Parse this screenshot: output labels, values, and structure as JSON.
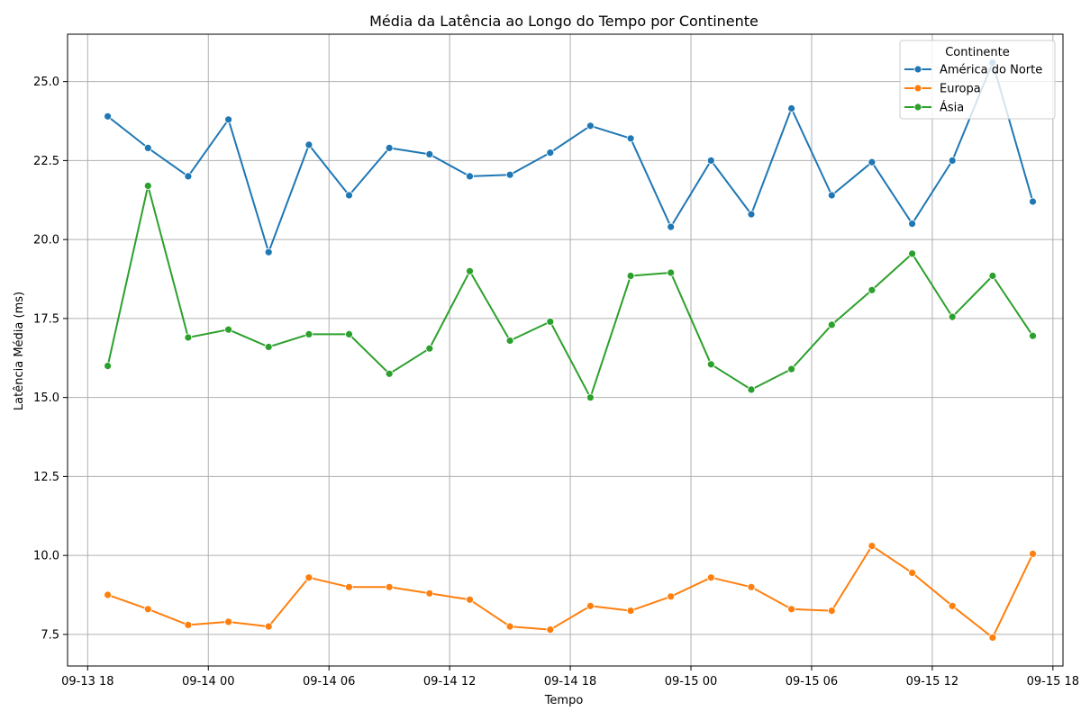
{
  "chart_data": {
    "type": "line",
    "title": "Média da Latência ao Longo do Tempo por Continente",
    "xlabel": "Tempo",
    "ylabel": "Latência Média (ms)",
    "x": [
      "09-13 19:00",
      "09-13 21:00",
      "09-13 23:00",
      "09-14 01:00",
      "09-14 03:00",
      "09-14 05:00",
      "09-14 07:00",
      "09-14 09:00",
      "09-14 11:00",
      "09-14 13:00",
      "09-14 15:00",
      "09-14 17:00",
      "09-14 19:00",
      "09-14 21:00",
      "09-14 23:00",
      "09-15 01:00",
      "09-15 03:00",
      "09-15 05:00",
      "09-15 07:00",
      "09-15 09:00",
      "09-15 11:00",
      "09-15 13:00",
      "09-15 15:00",
      "09-15 17:00"
    ],
    "x_ticks": [
      "09-13 18",
      "09-14 00",
      "09-14 06",
      "09-14 12",
      "09-14 18",
      "09-15 00",
      "09-15 06",
      "09-15 12",
      "09-15 18"
    ],
    "x_range": [
      "09-13 17:00",
      "09-15 18:30"
    ],
    "y_ticks": [
      "7.5",
      "10.0",
      "12.5",
      "15.0",
      "17.5",
      "20.0",
      "22.5",
      "25.0"
    ],
    "ylim": [
      6.5,
      26.5
    ],
    "grid": true,
    "legend": {
      "title": "Continente",
      "placement": "top-right"
    },
    "series": [
      {
        "name": "América do Norte",
        "color": "#1f77b4",
        "values": [
          23.9,
          22.9,
          22.0,
          23.8,
          19.6,
          23.0,
          21.4,
          22.9,
          22.7,
          22.0,
          22.05,
          22.75,
          23.6,
          23.2,
          20.4,
          22.5,
          20.8,
          24.15,
          21.4,
          22.45,
          20.5,
          22.5,
          25.6,
          21.2
        ]
      },
      {
        "name": "Europa",
        "color": "#ff7f0e",
        "values": [
          8.75,
          8.3,
          7.8,
          7.9,
          7.75,
          9.3,
          9.0,
          9.0,
          8.8,
          8.6,
          7.75,
          7.65,
          8.4,
          8.25,
          8.7,
          9.3,
          9.0,
          8.3,
          8.25,
          10.3,
          9.45,
          8.4,
          7.4,
          10.05
        ]
      },
      {
        "name": "Ásia",
        "color": "#2ca02c",
        "values": [
          16.0,
          21.7,
          16.9,
          17.15,
          16.6,
          17.0,
          17.0,
          15.75,
          16.55,
          19.0,
          16.8,
          17.4,
          15.0,
          18.85,
          18.95,
          16.05,
          15.25,
          15.9,
          17.3,
          18.4,
          19.55,
          17.55,
          18.85,
          16.95
        ]
      }
    ]
  }
}
